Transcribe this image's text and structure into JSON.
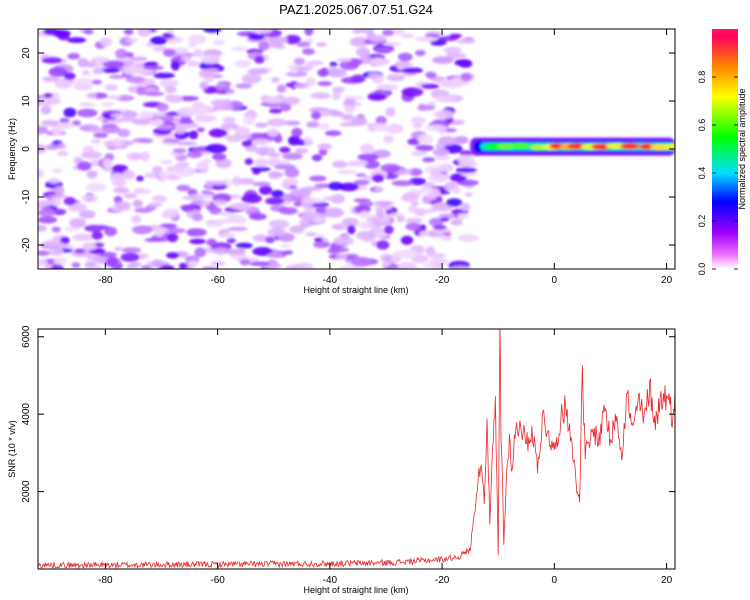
{
  "title": "PAZ1.2025.067.07.51.G24",
  "chart_data": [
    {
      "type": "heatmap",
      "xlabel": "Height of straight line (km)",
      "ylabel": "Frequency (Hz)",
      "xlim": [
        -92,
        21.5
      ],
      "ylim": [
        -25,
        25
      ],
      "xticks": [
        -80,
        -60,
        -40,
        -20,
        0,
        20
      ],
      "yticks": [
        -20,
        -10,
        0,
        10,
        20
      ],
      "colorbar": {
        "label": "Normalized spectral amplitude",
        "range": [
          0,
          1
        ],
        "ticks": [
          "0.0",
          "0.2",
          "0.4",
          "0.6",
          "0.8"
        ],
        "colors": [
          "#ffffff",
          "#ff00ff",
          "#8000ff",
          "#0000ff",
          "#00ffff",
          "#00ff00",
          "#ffff00",
          "#ff8000",
          "#ff0000"
        ]
      },
      "noise_region": {
        "x": [
          -92,
          -15
        ],
        "freq": [
          -25,
          25
        ],
        "amplitude": [
          0.0,
          0.25
        ]
      },
      "signal_region": {
        "x": [
          -15,
          21.5
        ],
        "freq_center": 0.5,
        "amplitude": [
          0.3,
          1.0
        ]
      }
    },
    {
      "type": "line",
      "xlabel": "Height of straight line (km)",
      "ylabel": "SNR (10 * v/v)",
      "xlim": [
        -92,
        21.5
      ],
      "ylim": [
        0,
        6200
      ],
      "xticks": [
        -80,
        -60,
        -40,
        -20,
        0,
        20
      ],
      "yticks": [
        2000,
        4000,
        6000
      ],
      "color": "#e8282b",
      "series": [
        {
          "x": [
            -92,
            -80,
            -60,
            -40,
            -30,
            -25,
            -20,
            -17,
            -15,
            -14,
            -13,
            -12.5,
            -12,
            -11.5,
            -11,
            -10.5,
            -10,
            -9.7,
            -9.5,
            -9.2,
            -9,
            -8.5,
            -8,
            -7.5,
            -7,
            -6,
            -5,
            -4,
            -3,
            -2,
            -1,
            0,
            1,
            2,
            3,
            4,
            4.5,
            5,
            5.5,
            6,
            7,
            8,
            9,
            10,
            11,
            12,
            13,
            14,
            15,
            16,
            17,
            18,
            19,
            20,
            21,
            21.5
          ],
          "y": [
            100,
            100,
            120,
            140,
            160,
            200,
            250,
            320,
            500,
            1800,
            2900,
            1700,
            3900,
            1200,
            3000,
            4200,
            400,
            6200,
            3500,
            2000,
            600,
            2500,
            3300,
            2600,
            3500,
            3800,
            3200,
            3600,
            2700,
            3900,
            3500,
            3000,
            3800,
            4200,
            3500,
            2000,
            1900,
            5000,
            3000,
            3100,
            3600,
            3300,
            4300,
            3200,
            4100,
            3000,
            4500,
            3500,
            4400,
            3800,
            4700,
            3800,
            4400,
            4500,
            4000,
            4600
          ]
        }
      ]
    }
  ]
}
